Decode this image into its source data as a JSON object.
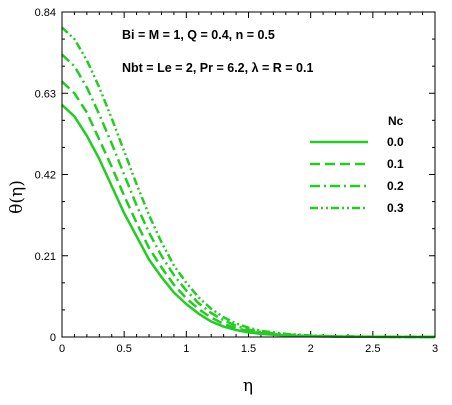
{
  "chart_data": {
    "type": "line",
    "title": "",
    "xlabel": "η",
    "ylabel": "θ(η)",
    "xlim": [
      0,
      3
    ],
    "ylim": [
      0,
      0.84
    ],
    "xticks": [
      0,
      0.5,
      1,
      1.5,
      2,
      2.5,
      3
    ],
    "xtick_labels": [
      "0",
      "0.5",
      "1",
      "1.5",
      "2",
      "2.5",
      "3"
    ],
    "yticks": [
      0,
      0.21,
      0.42,
      0.63,
      0.84
    ],
    "ytick_labels": [
      "0",
      "0.21",
      "0.42",
      "0.63",
      "0.84"
    ],
    "grid": false,
    "line_color": "#22cc22",
    "annotations": [
      "Bi = M = 1, Q = 0.4, n = 0.5",
      "Nbt = Le = 2, Pr = 6.2,  λ = R = 0.1"
    ],
    "legend": {
      "title": "Nc",
      "placement": "right"
    },
    "series": [
      {
        "name": "0.0",
        "dash": "solid",
        "x": [
          0,
          0.1,
          0.2,
          0.3,
          0.4,
          0.5,
          0.6,
          0.7,
          0.8,
          0.9,
          1.0,
          1.1,
          1.2,
          1.3,
          1.4,
          1.5,
          1.6,
          1.8,
          2.0,
          2.2,
          2.5,
          3.0
        ],
        "y": [
          0.6,
          0.57,
          0.52,
          0.46,
          0.39,
          0.32,
          0.26,
          0.2,
          0.155,
          0.115,
          0.085,
          0.06,
          0.04,
          0.027,
          0.018,
          0.012,
          0.008,
          0.004,
          0.002,
          0.001,
          0.0005,
          0
        ]
      },
      {
        "name": "0.1",
        "dash": "dashed",
        "x": [
          0,
          0.1,
          0.2,
          0.3,
          0.4,
          0.5,
          0.6,
          0.7,
          0.8,
          0.9,
          1.0,
          1.1,
          1.2,
          1.3,
          1.4,
          1.5,
          1.6,
          1.8,
          2.0,
          2.2,
          2.5,
          3.0
        ],
        "y": [
          0.66,
          0.63,
          0.58,
          0.51,
          0.44,
          0.365,
          0.295,
          0.23,
          0.18,
          0.135,
          0.1,
          0.072,
          0.05,
          0.034,
          0.023,
          0.015,
          0.01,
          0.005,
          0.0025,
          0.0012,
          0.0005,
          0
        ]
      },
      {
        "name": "0.2",
        "dash": "dashdot",
        "x": [
          0,
          0.1,
          0.2,
          0.3,
          0.4,
          0.5,
          0.6,
          0.7,
          0.8,
          0.9,
          1.0,
          1.1,
          1.2,
          1.3,
          1.4,
          1.5,
          1.6,
          1.8,
          2.0,
          2.2,
          2.5,
          3.0
        ],
        "y": [
          0.73,
          0.7,
          0.645,
          0.575,
          0.5,
          0.42,
          0.34,
          0.27,
          0.21,
          0.16,
          0.12,
          0.087,
          0.062,
          0.043,
          0.029,
          0.019,
          0.013,
          0.0065,
          0.003,
          0.0015,
          0.0006,
          0
        ]
      },
      {
        "name": "0.3",
        "dash": "dashdotdot",
        "x": [
          0,
          0.1,
          0.2,
          0.3,
          0.4,
          0.5,
          0.6,
          0.7,
          0.8,
          0.9,
          1.0,
          1.1,
          1.2,
          1.3,
          1.4,
          1.5,
          1.6,
          1.8,
          2.0,
          2.2,
          2.5,
          3.0
        ],
        "y": [
          0.8,
          0.77,
          0.715,
          0.645,
          0.565,
          0.48,
          0.395,
          0.315,
          0.245,
          0.185,
          0.14,
          0.102,
          0.073,
          0.051,
          0.035,
          0.024,
          0.016,
          0.008,
          0.0038,
          0.0018,
          0.0007,
          0
        ]
      }
    ]
  }
}
